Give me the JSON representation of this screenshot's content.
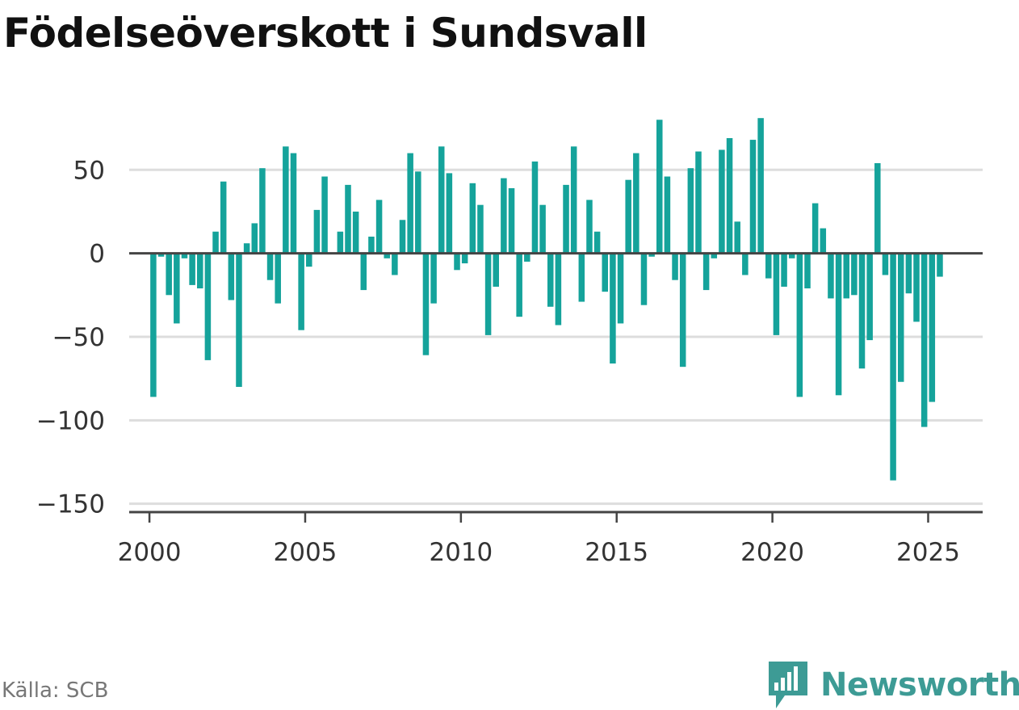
{
  "title": "Födelseöverskott i Sundsvall",
  "source": "Källa: SCB",
  "brand": {
    "name": "Newsworthy",
    "icon": "bar-chart-icon"
  },
  "colors": {
    "bar": "#15a39b",
    "brand": "#3d9b95",
    "grid": "#dddddd",
    "zero_line": "#444444"
  },
  "chart_data": {
    "type": "bar",
    "title": "Födelseöverskott i Sundsvall",
    "xlabel": "",
    "ylabel": "",
    "ylim": [
      -155,
      84
    ],
    "xlim": [
      1999.35,
      2026.75
    ],
    "grid": true,
    "legend": "none",
    "y_ticks": [
      50,
      0,
      -50,
      -100,
      -150
    ],
    "y_tick_labels": [
      "50",
      "0",
      "−50",
      "−100",
      "−150"
    ],
    "x_ticks": [
      2000,
      2005,
      2010,
      2015,
      2020,
      2025
    ],
    "x_tick_labels": [
      "2000",
      "2005",
      "2010",
      "2015",
      "2020",
      "2025"
    ],
    "series": [
      {
        "period": "quarter",
        "start": "2000-Q1",
        "values": [
          -86,
          -2,
          -25,
          -42,
          -3,
          -19,
          -21,
          -64,
          13,
          43,
          -28,
          -80,
          6,
          18,
          51,
          -16,
          -30,
          64,
          60,
          -46,
          -8,
          26,
          46,
          0,
          13,
          41,
          25,
          -22,
          10,
          32,
          -3,
          -13,
          20,
          60,
          49,
          -61,
          -30,
          64,
          48,
          -10,
          -6,
          42,
          29,
          -49,
          -20,
          45,
          39,
          -38,
          -5,
          55,
          29,
          -32,
          -43,
          41,
          64,
          -29,
          32,
          13,
          -23,
          -66,
          -42,
          44,
          60,
          -31,
          -2,
          80,
          46,
          -16,
          -68,
          51,
          61,
          -22,
          -3,
          62,
          69,
          19,
          -13,
          68,
          81,
          -15,
          -49,
          -20,
          -3,
          -86,
          -21,
          30,
          15,
          -27,
          -85,
          -27,
          -25,
          -69,
          -52,
          54,
          -13,
          -136,
          -77,
          -24,
          -41,
          -104,
          -89,
          -14
        ]
      }
    ]
  }
}
